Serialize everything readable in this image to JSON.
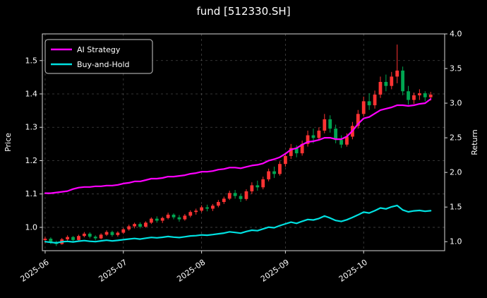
{
  "figure": {
    "title": "fund [512330.SH]",
    "background": "#000000",
    "text_color": "#ffffff",
    "grid_color": "#8a8a8a",
    "spine_color": "#d9d9d9"
  },
  "legend": {
    "items": [
      {
        "label": "AI Strategy",
        "color": "#ff00ff"
      },
      {
        "label": "Buy-and-Hold",
        "color": "#00e1e1"
      }
    ]
  },
  "axes": {
    "left_label": "Price",
    "right_label": "Return",
    "price_ticks": {
      "labels": [
        "1.0",
        "1.1",
        "1.2",
        "1.3",
        "1.4",
        "1.5"
      ],
      "values": [
        1.0,
        1.1,
        1.2,
        1.3,
        1.4,
        1.5
      ]
    },
    "return_ticks": {
      "labels": [
        "1.0",
        "1.5",
        "2.0",
        "2.5",
        "3.0",
        "3.5",
        "4.0"
      ],
      "values": [
        1.0,
        1.5,
        2.0,
        2.5,
        3.0,
        3.5,
        4.0
      ]
    },
    "price_range": [
      0.93,
      1.58
    ],
    "return_range": [
      0.87,
      4.0
    ],
    "x_tick_labels": [
      "2025-06",
      "2025-07",
      "2025-08",
      "2025-09",
      "2025-10"
    ],
    "x_tick_indices": [
      0,
      14,
      28,
      43,
      57
    ],
    "x_slots": 72
  },
  "chart_data": {
    "type": "candlestick_with_lines",
    "title": "fund [512330.SH]",
    "xlabel": "",
    "ylabel_left": "Price",
    "ylabel_right": "Return",
    "up_color": "#ff3333",
    "down_color": "#00a651",
    "candles_ohlc": [
      [
        0.962,
        0.972,
        0.952,
        0.966
      ],
      [
        0.966,
        0.97,
        0.95,
        0.956
      ],
      [
        0.956,
        0.96,
        0.944,
        0.95
      ],
      [
        0.95,
        0.968,
        0.948,
        0.964
      ],
      [
        0.964,
        0.976,
        0.96,
        0.971
      ],
      [
        0.971,
        0.974,
        0.956,
        0.962
      ],
      [
        0.962,
        0.978,
        0.96,
        0.974
      ],
      [
        0.974,
        0.986,
        0.97,
        0.981
      ],
      [
        0.981,
        0.985,
        0.967,
        0.972
      ],
      [
        0.972,
        0.976,
        0.961,
        0.967
      ],
      [
        0.967,
        0.982,
        0.964,
        0.978
      ],
      [
        0.978,
        0.991,
        0.974,
        0.986
      ],
      [
        0.986,
        0.99,
        0.972,
        0.977
      ],
      [
        0.977,
        0.988,
        0.972,
        0.984
      ],
      [
        0.984,
        0.998,
        0.98,
        0.994
      ],
      [
        0.994,
        1.008,
        0.99,
        1.003
      ],
      [
        1.003,
        1.014,
        0.997,
        1.01
      ],
      [
        1.01,
        1.015,
        0.997,
        1.002
      ],
      [
        1.002,
        1.018,
        0.999,
        1.014
      ],
      [
        1.014,
        1.03,
        1.01,
        1.026
      ],
      [
        1.026,
        1.033,
        1.014,
        1.02
      ],
      [
        1.02,
        1.032,
        1.013,
        1.028
      ],
      [
        1.028,
        1.044,
        1.024,
        1.038
      ],
      [
        1.038,
        1.042,
        1.024,
        1.03
      ],
      [
        1.03,
        1.037,
        1.017,
        1.024
      ],
      [
        1.024,
        1.04,
        1.02,
        1.035
      ],
      [
        1.035,
        1.051,
        1.03,
        1.046
      ],
      [
        1.046,
        1.056,
        1.038,
        1.05
      ],
      [
        1.05,
        1.066,
        1.045,
        1.06
      ],
      [
        1.06,
        1.068,
        1.048,
        1.056
      ],
      [
        1.056,
        1.07,
        1.049,
        1.065
      ],
      [
        1.065,
        1.082,
        1.06,
        1.076
      ],
      [
        1.076,
        1.092,
        1.07,
        1.086
      ],
      [
        1.086,
        1.11,
        1.082,
        1.103
      ],
      [
        1.103,
        1.112,
        1.086,
        1.094
      ],
      [
        1.094,
        1.1,
        1.076,
        1.085
      ],
      [
        1.085,
        1.114,
        1.08,
        1.108
      ],
      [
        1.108,
        1.135,
        1.1,
        1.126
      ],
      [
        1.126,
        1.14,
        1.11,
        1.12
      ],
      [
        1.12,
        1.152,
        1.114,
        1.144
      ],
      [
        1.144,
        1.176,
        1.138,
        1.168
      ],
      [
        1.168,
        1.182,
        1.148,
        1.16
      ],
      [
        1.16,
        1.198,
        1.155,
        1.19
      ],
      [
        1.19,
        1.224,
        1.182,
        1.214
      ],
      [
        1.214,
        1.25,
        1.205,
        1.238
      ],
      [
        1.238,
        1.246,
        1.21,
        1.222
      ],
      [
        1.222,
        1.26,
        1.215,
        1.25
      ],
      [
        1.25,
        1.29,
        1.242,
        1.276
      ],
      [
        1.276,
        1.296,
        1.252,
        1.268
      ],
      [
        1.268,
        1.3,
        1.26,
        1.29
      ],
      [
        1.29,
        1.34,
        1.282,
        1.324
      ],
      [
        1.324,
        1.336,
        1.284,
        1.296
      ],
      [
        1.296,
        1.308,
        1.252,
        1.262
      ],
      [
        1.262,
        1.276,
        1.238,
        1.248
      ],
      [
        1.248,
        1.282,
        1.242,
        1.272
      ],
      [
        1.272,
        1.316,
        1.264,
        1.304
      ],
      [
        1.304,
        1.352,
        1.296,
        1.34
      ],
      [
        1.34,
        1.392,
        1.332,
        1.378
      ],
      [
        1.378,
        1.402,
        1.352,
        1.366
      ],
      [
        1.366,
        1.41,
        1.356,
        1.398
      ],
      [
        1.398,
        1.452,
        1.388,
        1.436
      ],
      [
        1.436,
        1.458,
        1.408,
        1.424
      ],
      [
        1.424,
        1.466,
        1.414,
        1.452
      ],
      [
        1.452,
        1.548,
        1.432,
        1.47
      ],
      [
        1.47,
        1.482,
        1.396,
        1.408
      ],
      [
        1.408,
        1.424,
        1.368,
        1.382
      ],
      [
        1.382,
        1.404,
        1.37,
        1.396
      ],
      [
        1.396,
        1.414,
        1.382,
        1.402
      ],
      [
        1.402,
        1.408,
        1.378,
        1.39
      ],
      [
        1.39,
        1.406,
        1.38,
        1.398
      ]
    ],
    "series": [
      {
        "name": "AI Strategy",
        "axis": "return",
        "color": "#ff00ff",
        "values": [
          1.7,
          1.7,
          1.71,
          1.72,
          1.73,
          1.76,
          1.78,
          1.79,
          1.79,
          1.8,
          1.8,
          1.81,
          1.81,
          1.82,
          1.84,
          1.85,
          1.87,
          1.87,
          1.89,
          1.91,
          1.91,
          1.92,
          1.94,
          1.94,
          1.95,
          1.96,
          1.98,
          1.99,
          2.01,
          2.01,
          2.02,
          2.04,
          2.05,
          2.07,
          2.07,
          2.06,
          2.08,
          2.1,
          2.11,
          2.13,
          2.17,
          2.19,
          2.22,
          2.27,
          2.33,
          2.35,
          2.4,
          2.44,
          2.45,
          2.47,
          2.5,
          2.5,
          2.48,
          2.48,
          2.52,
          2.6,
          2.7,
          2.78,
          2.8,
          2.85,
          2.9,
          2.92,
          2.94,
          2.97,
          2.97,
          2.96,
          2.97,
          2.99,
          3.0,
          3.06
        ]
      },
      {
        "name": "Buy-and-Hold",
        "axis": "return",
        "color": "#00e1e1",
        "values": [
          1.0,
          0.99,
          0.983,
          0.998,
          1.005,
          0.996,
          1.008,
          1.016,
          1.006,
          1.001,
          1.012,
          1.021,
          1.011,
          1.019,
          1.029,
          1.038,
          1.046,
          1.037,
          1.05,
          1.062,
          1.056,
          1.064,
          1.075,
          1.066,
          1.06,
          1.071,
          1.083,
          1.087,
          1.097,
          1.093,
          1.102,
          1.114,
          1.124,
          1.142,
          1.133,
          1.123,
          1.147,
          1.166,
          1.159,
          1.184,
          1.209,
          1.201,
          1.232,
          1.257,
          1.282,
          1.265,
          1.294,
          1.321,
          1.313,
          1.335,
          1.371,
          1.342,
          1.306,
          1.292,
          1.317,
          1.35,
          1.387,
          1.427,
          1.414,
          1.447,
          1.487,
          1.474,
          1.503,
          1.522,
          1.458,
          1.431,
          1.445,
          1.451,
          1.439,
          1.447
        ]
      }
    ]
  }
}
